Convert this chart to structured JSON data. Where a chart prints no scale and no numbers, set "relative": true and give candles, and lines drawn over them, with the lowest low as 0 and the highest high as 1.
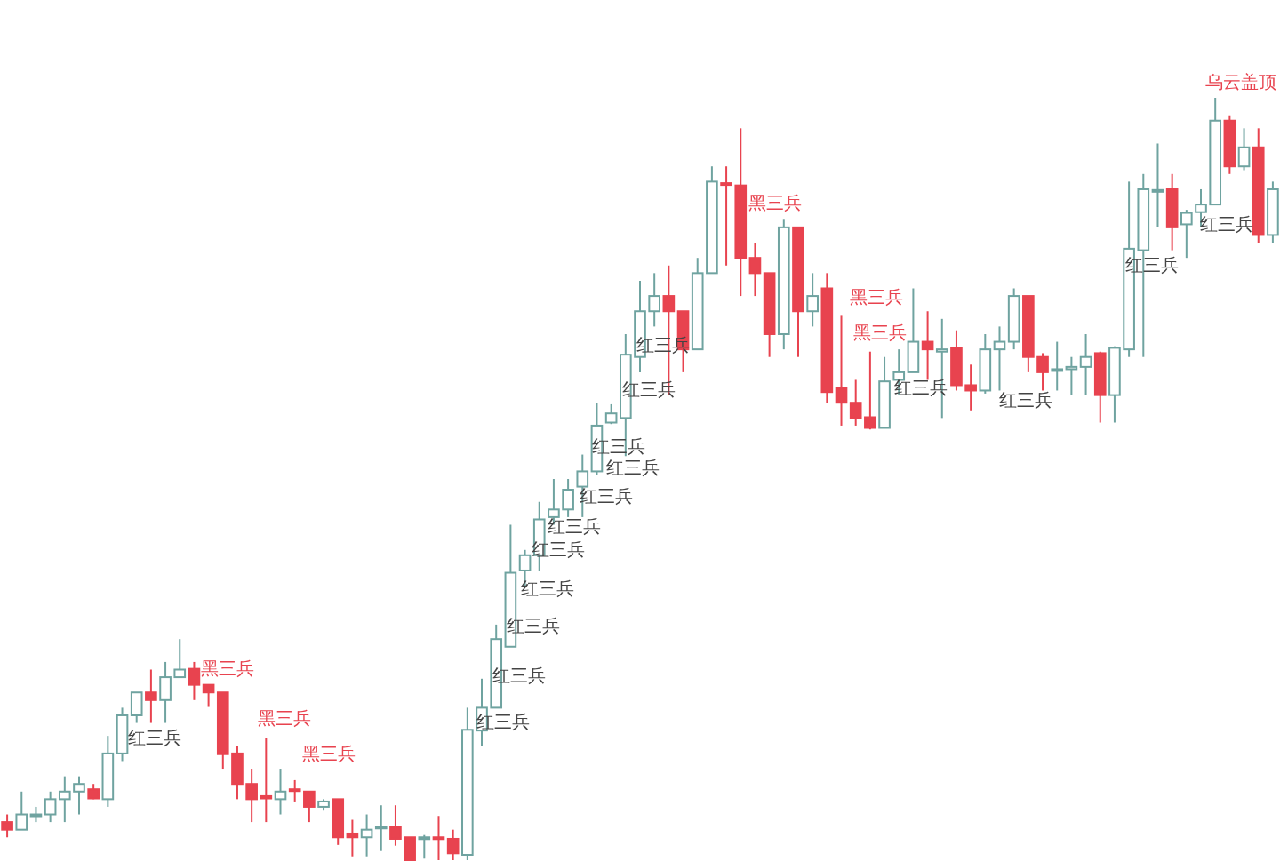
{
  "chart_data": {
    "type": "candlestick",
    "relative": true,
    "categories": [
      null,
      null,
      null,
      null,
      null,
      null,
      null,
      null,
      null,
      null,
      null,
      null,
      null,
      null,
      null,
      null,
      null,
      null,
      null,
      null,
      null,
      null,
      null,
      null,
      null,
      null,
      null,
      null,
      null,
      null,
      null,
      null,
      null,
      null,
      null,
      null,
      null,
      null,
      null,
      null,
      null,
      null,
      null,
      null,
      null,
      null,
      null,
      null,
      null,
      null,
      null,
      null,
      null,
      null,
      null,
      null,
      null,
      null,
      null,
      null,
      null,
      null,
      null,
      null,
      null,
      null,
      null,
      null,
      null,
      null,
      null,
      null,
      null,
      null,
      null,
      null,
      null,
      null,
      null,
      null,
      null,
      null,
      null,
      null,
      null,
      null,
      null,
      null,
      null
    ],
    "ohlc": [
      [
        0.05,
        0.06,
        0.03,
        0.04
      ],
      [
        0.04,
        0.09,
        0.04,
        0.06
      ],
      [
        0.06,
        0.07,
        0.05,
        0.06
      ],
      [
        0.06,
        0.09,
        0.05,
        0.08
      ],
      [
        0.08,
        0.11,
        0.05,
        0.09
      ],
      [
        0.09,
        0.11,
        0.06,
        0.1
      ],
      [
        0.093,
        0.1,
        0.08,
        0.081
      ],
      [
        0.08,
        0.163,
        0.07,
        0.14
      ],
      [
        0.14,
        0.2,
        0.13,
        0.19
      ],
      [
        0.19,
        0.22,
        0.18,
        0.22
      ],
      [
        0.22,
        0.25,
        0.18,
        0.21
      ],
      [
        0.21,
        0.26,
        0.18,
        0.24
      ],
      [
        0.24,
        0.29,
        0.24,
        0.25
      ],
      [
        0.251,
        0.26,
        0.21,
        0.23
      ],
      [
        0.23,
        0.23,
        0.201,
        0.22
      ],
      [
        0.22,
        0.22,
        0.12,
        0.139
      ],
      [
        0.14,
        0.15,
        0.08,
        0.1
      ],
      [
        0.1,
        0.12,
        0.05,
        0.08
      ],
      [
        0.084,
        0.16,
        0.05,
        0.081
      ],
      [
        0.08,
        0.12,
        0.06,
        0.09
      ],
      [
        0.093,
        0.105,
        0.077,
        0.091
      ],
      [
        0.09,
        0.09,
        0.05,
        0.07
      ],
      [
        0.07,
        0.08,
        0.065,
        0.077
      ],
      [
        0.08,
        0.08,
        0.02,
        0.03
      ],
      [
        0.035,
        0.053,
        0.005,
        0.03
      ],
      [
        0.03,
        0.06,
        0.005,
        0.04
      ],
      [
        0.042,
        0.072,
        0.012,
        0.044
      ],
      [
        0.044,
        0.072,
        0.019,
        0.028
      ],
      [
        0.03,
        0.03,
        0,
        0
      ],
      [
        0.028,
        0.033,
        0.002,
        0.03
      ],
      [
        0.03,
        0.058,
        0,
        0.028
      ],
      [
        0.028,
        0.04,
        0,
        0.009
      ],
      [
        0.007,
        0.2,
        0,
        0.171
      ],
      [
        0.17,
        0.238,
        0.15,
        0.2
      ],
      [
        0.2,
        0.309,
        0.2,
        0.29
      ],
      [
        0.28,
        0.44,
        0.28,
        0.377
      ],
      [
        0.38,
        0.407,
        0.36,
        0.4
      ],
      [
        0.4,
        0.47,
        0.38,
        0.447
      ],
      [
        0.45,
        0.5,
        0.44,
        0.46
      ],
      [
        0.46,
        0.5,
        0.45,
        0.486
      ],
      [
        0.49,
        0.532,
        0.45,
        0.51
      ],
      [
        0.51,
        0.6,
        0.505,
        0.57
      ],
      [
        0.574,
        0.598,
        0.572,
        0.586
      ],
      [
        0.58,
        0.69,
        0.53,
        0.663
      ],
      [
        0.66,
        0.76,
        0.64,
        0.72
      ],
      [
        0.72,
        0.77,
        0.7,
        0.74
      ],
      [
        0.74,
        0.78,
        0.61,
        0.72
      ],
      [
        0.72,
        0.72,
        0.64,
        0.67
      ],
      [
        0.67,
        0.79,
        0.67,
        0.77
      ],
      [
        0.77,
        0.91,
        0.77,
        0.89
      ],
      [
        0.888,
        0.91,
        0.78,
        0.886
      ],
      [
        0.885,
        0.96,
        0.74,
        0.79
      ],
      [
        0.79,
        0.81,
        0.74,
        0.77
      ],
      [
        0.77,
        0.77,
        0.66,
        0.69
      ],
      [
        0.69,
        0.84,
        0.67,
        0.83
      ],
      [
        0.83,
        0.83,
        0.66,
        0.72
      ],
      [
        0.72,
        0.77,
        0.7,
        0.74
      ],
      [
        0.75,
        0.77,
        0.6,
        0.614
      ],
      [
        0.62,
        0.714,
        0.57,
        0.6
      ],
      [
        0.6,
        0.63,
        0.57,
        0.58
      ],
      [
        0.581,
        0.667,
        0.565,
        0.567
      ],
      [
        0.567,
        0.66,
        0.567,
        0.628
      ],
      [
        0.63,
        0.67,
        0.61,
        0.64
      ],
      [
        0.64,
        0.75,
        0.64,
        0.68
      ],
      [
        0.68,
        0.72,
        0.63,
        0.67
      ],
      [
        0.667,
        0.71,
        0.58,
        0.67
      ],
      [
        0.672,
        0.695,
        0.616,
        0.623
      ],
      [
        0.623,
        0.65,
        0.59,
        0.616
      ],
      [
        0.616,
        0.69,
        0.612,
        0.67
      ],
      [
        0.67,
        0.7,
        0.616,
        0.68
      ],
      [
        0.68,
        0.75,
        0.67,
        0.74
      ],
      [
        0.74,
        0.74,
        0.64,
        0.66
      ],
      [
        0.66,
        0.665,
        0.616,
        0.64
      ],
      [
        0.642,
        0.68,
        0.616,
        0.644
      ],
      [
        0.644,
        0.66,
        0.61,
        0.647
      ],
      [
        0.647,
        0.69,
        0.61,
        0.66
      ],
      [
        0.665,
        0.667,
        0.574,
        0.61
      ],
      [
        0.61,
        0.674,
        0.574,
        0.672
      ],
      [
        0.67,
        0.89,
        0.66,
        0.802
      ],
      [
        0.8,
        0.9,
        0.66,
        0.88
      ],
      [
        0.877,
        0.94,
        0.83,
        0.879
      ],
      [
        0.88,
        0.9,
        0.8,
        0.83
      ],
      [
        0.834,
        0.853,
        0.79,
        0.849
      ],
      [
        0.85,
        0.88,
        0.83,
        0.86
      ],
      [
        0.86,
        1,
        0.86,
        0.97
      ],
      [
        0.97,
        0.977,
        0.9,
        0.91
      ],
      [
        0.91,
        0.96,
        0.905,
        0.935
      ],
      [
        0.935,
        0.96,
        0.81,
        0.82
      ],
      [
        0.82,
        0.89,
        0.81,
        0.88
      ]
    ],
    "annotations": [
      "红三兵",
      "黑三兵",
      "黑三兵",
      "黑三兵",
      "红三兵",
      "红三兵",
      "红三兵",
      "红三兵",
      "红三兵",
      "红三兵",
      "红三兵",
      "红三兵",
      "红三兵",
      "红三兵",
      "红三兵",
      "黑三兵",
      "黑三兵",
      "黑三兵",
      "红三兵",
      "红三兵",
      "红三兵",
      "红三兵",
      "乌云盖顶"
    ]
  }
}
